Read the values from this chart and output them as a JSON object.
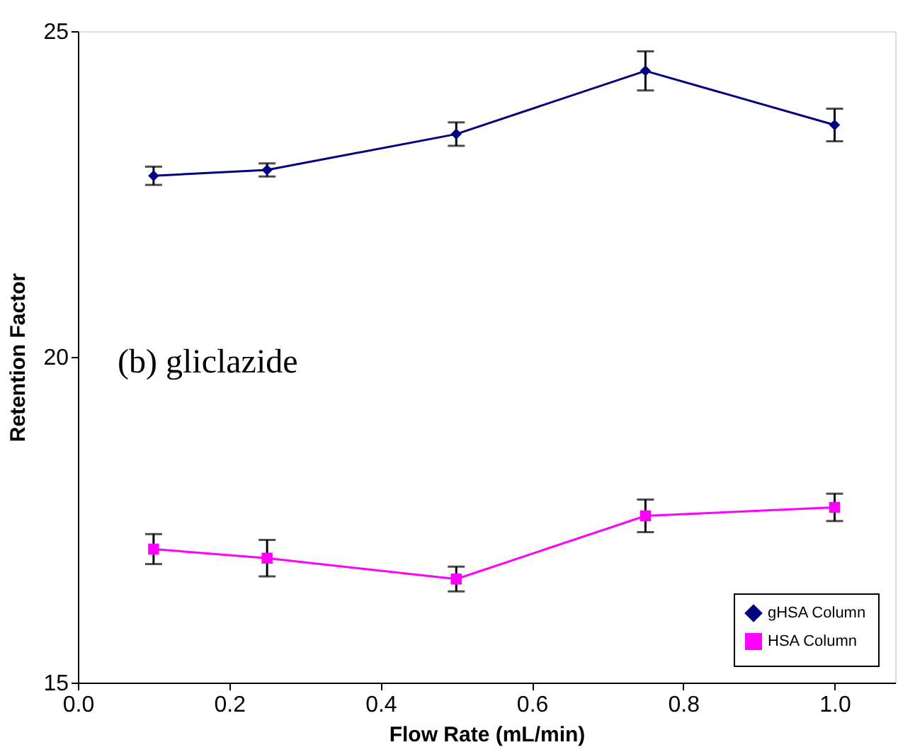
{
  "chart_data": {
    "type": "line",
    "xlabel": "Flow Rate (mL/min)",
    "ylabel": "Retention Factor",
    "x": [
      0.1,
      0.25,
      0.5,
      0.75,
      1.0
    ],
    "series": [
      {
        "name": "gHSA Column",
        "color": "#000080",
        "marker": "diamond",
        "values": [
          22.78,
          22.87,
          23.42,
          24.39,
          23.56
        ],
        "errors": [
          0.14,
          0.1,
          0.18,
          0.3,
          0.25
        ]
      },
      {
        "name": "HSA Column",
        "color": "#ff00ff",
        "marker": "square",
        "values": [
          17.05,
          16.91,
          16.59,
          17.56,
          17.69
        ],
        "errors": [
          0.23,
          0.28,
          0.19,
          0.25,
          0.21
        ]
      }
    ],
    "annotations": [
      "(b) gliclazide"
    ],
    "xlim": [
      0,
      1.08
    ],
    "xticks": [
      {
        "value": 0,
        "label": "0.0"
      },
      0.2,
      0.4,
      0.6,
      0.8,
      {
        "value": 1,
        "label": "1.0"
      }
    ],
    "ylim": [
      15,
      25
    ],
    "yticks": [
      15,
      20,
      25
    ],
    "grid": false,
    "legend": "bottom right"
  }
}
